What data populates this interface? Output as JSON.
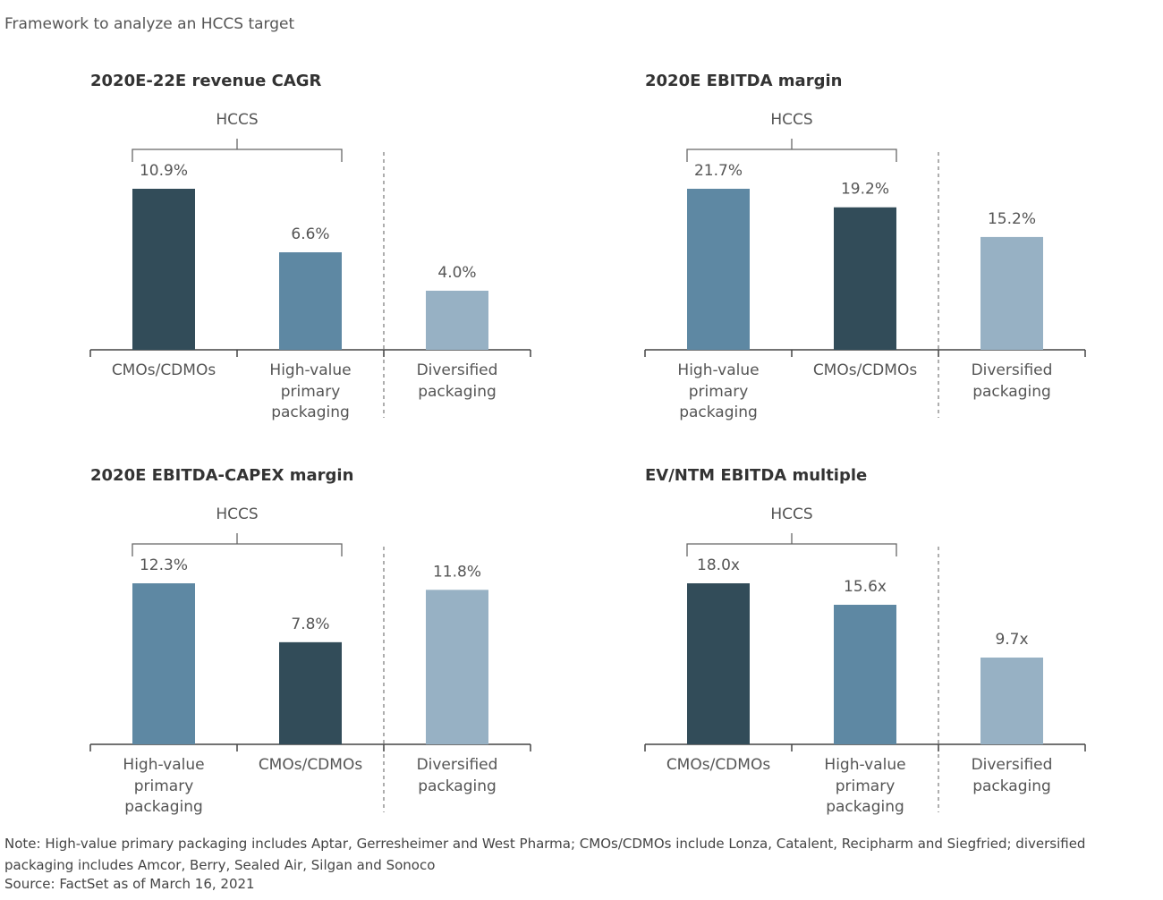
{
  "title": "Framework to analyze an HCCS target",
  "chart_data": [
    {
      "type": "bar",
      "title": "2020E-22E revenue CAGR",
      "group_label": "HCCS",
      "categories": [
        "CMOs/CDMOs",
        "High-value primary packaging",
        "Diversified packaging"
      ],
      "values": [
        10.9,
        6.6,
        4.0
      ],
      "value_labels": [
        "10.9%",
        "6.6%",
        "4.0%"
      ],
      "colors": [
        "#324c59",
        "#5e88a3",
        "#97b1c4"
      ]
    },
    {
      "type": "bar",
      "title": "2020E EBITDA margin",
      "group_label": "HCCS",
      "categories": [
        "High-value primary packaging",
        "CMOs/CDMOs",
        "Diversified packaging"
      ],
      "values": [
        21.7,
        19.2,
        15.2
      ],
      "value_labels": [
        "21.7%",
        "19.2%",
        "15.2%"
      ],
      "colors": [
        "#5e88a3",
        "#324c59",
        "#97b1c4"
      ]
    },
    {
      "type": "bar",
      "title": "2020E EBITDA-CAPEX margin",
      "group_label": "HCCS",
      "categories": [
        "High-value primary packaging",
        "CMOs/CDMOs",
        "Diversified packaging"
      ],
      "values": [
        12.3,
        7.8,
        11.8
      ],
      "value_labels": [
        "12.3%",
        "7.8%",
        "11.8%"
      ],
      "colors": [
        "#5e88a3",
        "#324c59",
        "#97b1c4"
      ]
    },
    {
      "type": "bar",
      "title": "EV/NTM EBITDA multiple",
      "group_label": "HCCS",
      "categories": [
        "CMOs/CDMOs",
        "High-value primary packaging",
        "Diversified packaging"
      ],
      "values": [
        18.0,
        15.6,
        9.7
      ],
      "value_labels": [
        "18.0x",
        "15.6x",
        "9.7x"
      ],
      "colors": [
        "#324c59",
        "#5e88a3",
        "#97b1c4"
      ]
    }
  ],
  "note": "Note: High-value primary packaging includes Aptar, Gerresheimer and West Pharma; CMOs/CDMOs include Lonza, Catalent, Recipharm and Siegfried; diversified packaging includes Amcor, Berry, Sealed Air, Silgan and Sonoco",
  "source": "Source: FactSet as of March 16, 2021"
}
